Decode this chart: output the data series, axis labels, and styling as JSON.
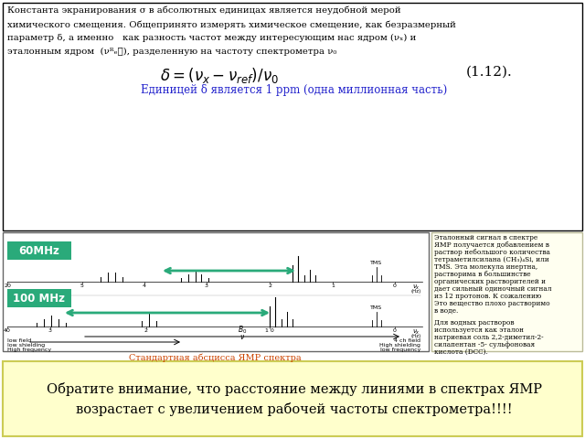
{
  "bg_color": "#ffffff",
  "top_box_border": "#000000",
  "top_text_color": "#000000",
  "formula_color": "#000000",
  "unit_color": "#2222cc",
  "unit_text": "Единицей δ является 1 ppm (одна миллионная часть)",
  "label_60": "60MHz",
  "label_100": "100 MHz",
  "label_bg": "#2aaa7a",
  "label_text_color": "#ffffff",
  "arrow_color": "#2aaa7a",
  "right_panel_bg": "#fffff0",
  "right_panel_border": "#bbbb99",
  "caption_color": "#cc4400",
  "caption_text": "Стандартная абсцисса ЯМР спектра",
  "bottom_box_bg": "#ffffcc",
  "bottom_box_border": "#cccc55",
  "bottom_text_line1": "Обратите внимание, что расстояние между линиями в спектрах ЯМР",
  "bottom_text_line2": "возрастает с увеличением рабочей частоты спектрометра!!!!",
  "bottom_text_color": "#000000",
  "right_panel_lines": [
    "Эталонный сигнал в спектре",
    "ЯМР получается добавлением в",
    "раствор небольшого количества",
    "тетраметилсилана (CH₃)₄Si, или",
    "TMS. Эта молекула инертна,",
    "растворима в большинстве",
    "органических растворителей и",
    "дает сильный одиночный сигнал",
    "из 12 протонов. К сожалению",
    "Это вещество плохо растворимо",
    "в воде.",
    "",
    "Для водных растворов",
    "используется как эталон",
    "натриевая соль 2,2-диметил-2-",
    "силапентан -5- сульфоновая",
    "кислота (DCC)."
  ]
}
